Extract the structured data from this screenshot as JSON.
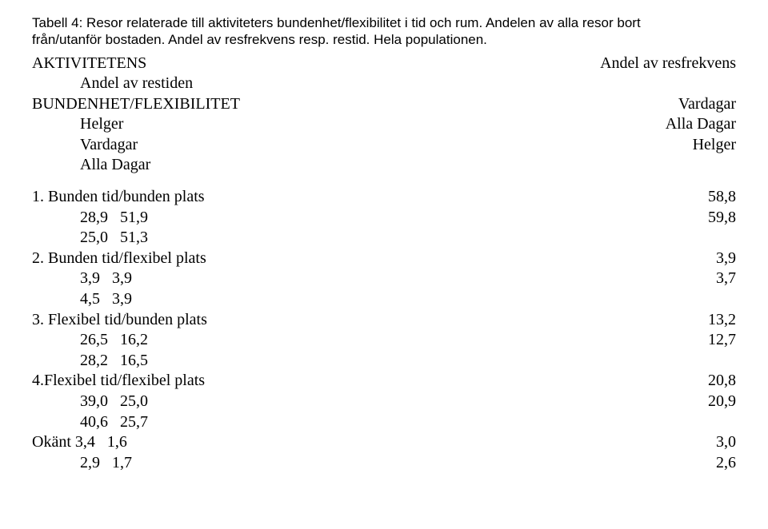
{
  "caption": {
    "line1": "Tabell 4: Resor relaterade till aktiviteters bundenhet/flexibilitet i tid och rum. Andelen av alla resor bort",
    "line2": "från/utanför bostaden. Andel av resfrekvens resp. restid. Hela populationen."
  },
  "header": {
    "left_l1": "AKTIVITETENS",
    "left_l2_indent": "Andel av restiden",
    "left_l3": "BUNDENHET/FLEXIBILITET",
    "left_l4_indent": "Helger",
    "left_l5_indent": "Vardagar",
    "left_l6_indent": "Alla Dagar",
    "right_l1": "Andel av resfrekvens",
    "right_l3": "Vardagar",
    "right_l4": "Alla Dagar",
    "right_l5": "Helger"
  },
  "rows": {
    "r1_label": "1. Bunden tid/bunden plats",
    "r1_right1": "58,8",
    "r1_sub1": "28,9   51,9",
    "r1_right2": "59,8",
    "r1_sub2": "25,0   51,3",
    "r2_label": "2. Bunden tid/flexibel plats",
    "r2_right1": "3,9",
    "r2_sub1": "3,9   3,9",
    "r2_right2": "3,7",
    "r2_sub2": "4,5   3,9",
    "r3_label": "3. Flexibel tid/bunden plats",
    "r3_right1": "13,2",
    "r3_sub1": "26,5   16,2",
    "r3_right2": "12,7",
    "r3_sub2": "28,2   16,5",
    "r4_label": "4.Flexibel tid/flexibel plats",
    "r4_right1": "20,8",
    "r4_sub1": "39,0   25,0",
    "r4_right2": "20,9",
    "r4_sub2": "40,6   25,7",
    "r5_label": "Okänt 3,4   1,6",
    "r5_right1": "3,0",
    "r5_sub1": "2,9   1,7",
    "r5_right2": "2,6"
  }
}
